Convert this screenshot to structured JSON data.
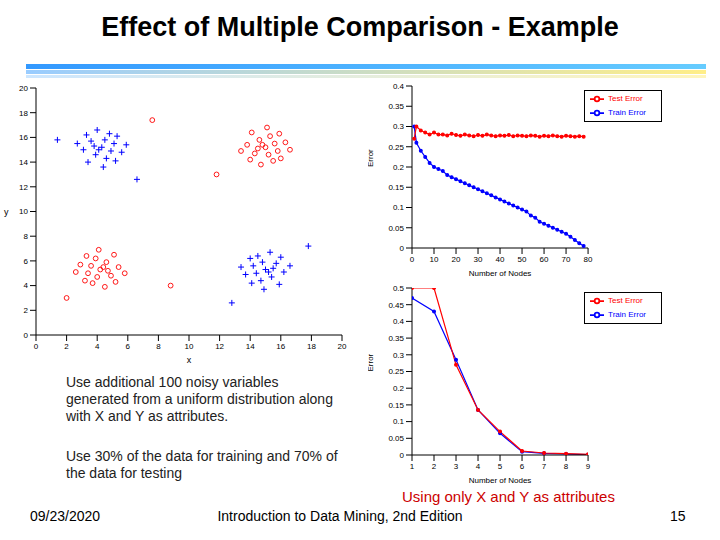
{
  "title": "Effect of Multiple Comparison - Example",
  "notes": [
    "Use additional 100 noisy variables generated from a uniform distribution along with X and Y as attributes.",
    "Use 30% of the data for training and 70% of the data for testing"
  ],
  "caption": "Using only X and Y as attributes",
  "footer": {
    "date": "09/23/2020",
    "source": "Introduction to Data Mining, 2nd Edition",
    "page": "15"
  },
  "chart_data": [
    {
      "type": "scatter",
      "xlabel": "x",
      "ylabel": "y",
      "xlim": [
        0,
        20
      ],
      "ylim": [
        0,
        20
      ],
      "xticks": [
        0,
        2,
        4,
        6,
        8,
        10,
        12,
        14,
        16,
        18,
        20
      ],
      "yticks": [
        0,
        2,
        4,
        6,
        8,
        10,
        12,
        14,
        16,
        18,
        20
      ],
      "series": [
        {
          "color": "#0000ff",
          "marker": "plus",
          "x": [
            4.3,
            5.1,
            3.6,
            4.6,
            3.9,
            5.6,
            3.1,
            4.8,
            4.0,
            5.3,
            3.3,
            5.2,
            3.4,
            5.9,
            2.7,
            4.4,
            4.5,
            3.8,
            4.9,
            4.1,
            15.0,
            14.2,
            15.7,
            14.7,
            15.4,
            13.7,
            16.2,
            14.5,
            15.3,
            14.0,
            16.0,
            14.1,
            15.9,
            13.4,
            16.6,
            14.9,
            14.8,
            15.5,
            14.4,
            15.2,
            12.8,
            17.8,
            1.4,
            6.6
          ],
          "y": [
            15.2,
            15.5,
            15.7,
            14.3,
            14.6,
            14.8,
            15.0,
            16.3,
            16.6,
            16.1,
            16.2,
            14.1,
            14.0,
            15.4,
            15.5,
            13.6,
            15.8,
            15.3,
            14.9,
            15.0,
            5.3,
            5.6,
            5.8,
            4.4,
            4.7,
            4.9,
            5.1,
            6.4,
            6.7,
            6.2,
            6.3,
            4.2,
            4.1,
            5.5,
            5.6,
            3.7,
            5.9,
            5.4,
            5.0,
            5.1,
            2.6,
            7.2,
            15.8,
            12.6
          ]
        },
        {
          "color": "#ff0000",
          "marker": "circle",
          "x": [
            15.0,
            15.8,
            14.3,
            15.3,
            14.6,
            16.3,
            13.8,
            15.5,
            14.7,
            16.0,
            14.0,
            15.9,
            14.1,
            16.6,
            13.4,
            15.1,
            15.2,
            14.5,
            15.6,
            14.8,
            4.2,
            3.4,
            4.9,
            3.9,
            4.6,
            2.9,
            5.4,
            3.7,
            4.5,
            3.2,
            5.2,
            3.3,
            5.1,
            2.6,
            5.8,
            4.1,
            4.0,
            4.7,
            3.6,
            4.4,
            7.6,
            11.8,
            2.0,
            8.8
          ],
          "y": [
            15.2,
            14.9,
            14.7,
            16.1,
            15.8,
            15.6,
            15.4,
            14.1,
            13.8,
            14.3,
            14.2,
            16.3,
            16.4,
            15.0,
            14.9,
            16.8,
            14.6,
            15.1,
            15.5,
            15.4,
            5.3,
            5.0,
            4.8,
            6.2,
            5.9,
            5.7,
            5.5,
            4.2,
            3.9,
            4.4,
            4.3,
            6.4,
            6.5,
            5.1,
            5.0,
            6.9,
            4.7,
            5.2,
            5.6,
            5.5,
            17.4,
            13.0,
            3.0,
            4.0
          ]
        }
      ]
    },
    {
      "type": "line",
      "xlabel": "Number of Nodes",
      "ylabel": "Error",
      "xlim": [
        0,
        80
      ],
      "ylim": [
        0,
        0.4
      ],
      "xticks": [
        0,
        10,
        20,
        30,
        40,
        50,
        60,
        70,
        80
      ],
      "yticks": [
        0,
        0.05,
        0.1,
        0.15,
        0.2,
        0.25,
        0.3,
        0.35,
        0.4
      ],
      "legend": "upper-right",
      "x": [
        1,
        2,
        4,
        6,
        8,
        10,
        12,
        14,
        16,
        18,
        20,
        22,
        24,
        26,
        28,
        30,
        32,
        34,
        36,
        38,
        40,
        42,
        44,
        46,
        48,
        50,
        52,
        54,
        56,
        58,
        60,
        62,
        64,
        66,
        68,
        70,
        72,
        74,
        76,
        78
      ],
      "series": [
        {
          "name": "Train Error",
          "color": "#0000ff",
          "marker": "circle",
          "values": [
            0.3,
            0.26,
            0.24,
            0.225,
            0.21,
            0.2,
            0.195,
            0.19,
            0.18,
            0.175,
            0.17,
            0.165,
            0.16,
            0.155,
            0.15,
            0.145,
            0.14,
            0.135,
            0.13,
            0.125,
            0.12,
            0.115,
            0.11,
            0.105,
            0.1,
            0.095,
            0.09,
            0.08,
            0.075,
            0.065,
            0.06,
            0.055,
            0.05,
            0.045,
            0.04,
            0.035,
            0.028,
            0.02,
            0.012,
            0.005
          ]
        },
        {
          "name": "Test Error",
          "color": "#ff0000",
          "marker": "circle",
          "values": [
            0.27,
            0.3,
            0.29,
            0.285,
            0.28,
            0.285,
            0.28,
            0.28,
            0.278,
            0.282,
            0.279,
            0.277,
            0.28,
            0.278,
            0.276,
            0.279,
            0.277,
            0.28,
            0.278,
            0.276,
            0.278,
            0.277,
            0.279,
            0.276,
            0.278,
            0.277,
            0.276,
            0.278,
            0.277,
            0.275,
            0.277,
            0.276,
            0.278,
            0.276,
            0.275,
            0.277,
            0.276,
            0.275,
            0.276,
            0.275
          ]
        }
      ]
    },
    {
      "type": "line",
      "xlabel": "Number of Nodes",
      "ylabel": "Error",
      "xlim": [
        1,
        9
      ],
      "ylim": [
        0,
        0.5
      ],
      "xticks": [
        1,
        2,
        3,
        4,
        5,
        6,
        7,
        8,
        9
      ],
      "yticks": [
        0,
        0.05,
        0.1,
        0.15,
        0.2,
        0.25,
        0.3,
        0.35,
        0.4,
        0.45,
        0.5
      ],
      "legend": "upper-right",
      "x": [
        1,
        2,
        3,
        4,
        5,
        6,
        7,
        8,
        9
      ],
      "series": [
        {
          "name": "Train Error",
          "color": "#0000ff",
          "marker": "circle",
          "values": [
            0.47,
            0.43,
            0.285,
            0.135,
            0.065,
            0.01,
            0.005,
            0.003,
            0.001
          ]
        },
        {
          "name": "Test Error",
          "color": "#ff0000",
          "marker": "circle",
          "values": [
            0.5,
            0.5,
            0.27,
            0.135,
            0.07,
            0.012,
            0.006,
            0.004,
            0.002
          ]
        }
      ]
    }
  ]
}
